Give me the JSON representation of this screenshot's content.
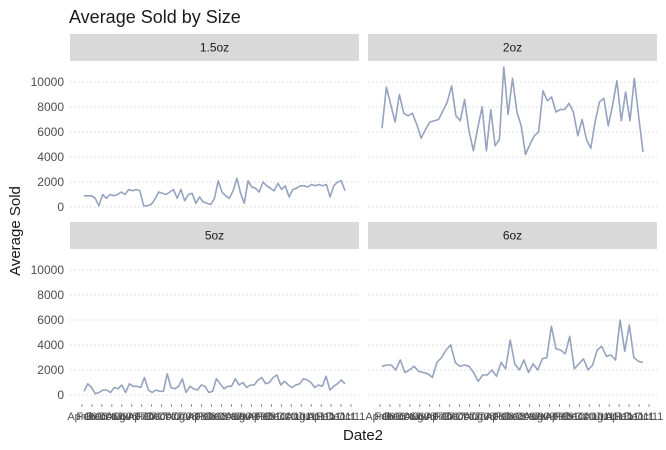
{
  "chart_data": {
    "type": "line",
    "title": "Average Sold by Size",
    "xlabel": "Date2",
    "ylabel": "Average Sold",
    "ylim": [
      0,
      11500
    ],
    "yticks": [
      0,
      2000,
      4000,
      6000,
      8000,
      10000
    ],
    "x_tick_labels": [
      "Apr06",
      "Feb06",
      "Dec06",
      "Oct06",
      "Aug06",
      "Jun07",
      "Apr07",
      "Feb07",
      "Dec07",
      "Oct07",
      "Aug08",
      "Jun08",
      "Apr08",
      "Feb08",
      "Dec09",
      "Oct09",
      "Aug09",
      "Jun09",
      "Apr09",
      "Feb10",
      "Dec10",
      "Oct10",
      "Aug11",
      "Jun11",
      "Apr11",
      "Feb11",
      "Dec11",
      "Oct11"
    ],
    "grid": true,
    "layout": "2x2 facets",
    "series_color": "#95a3bf",
    "series": [
      {
        "name": "1.5oz",
        "values": [
          900,
          900,
          900,
          700,
          100,
          1000,
          700,
          1000,
          900,
          1000,
          1200,
          1000,
          1400,
          1300,
          1400,
          1300,
          100,
          100,
          200,
          600,
          1200,
          1100,
          1000,
          1200,
          1400,
          700,
          1400,
          500,
          1000,
          1100,
          300,
          800,
          400,
          300,
          200,
          700,
          2100,
          1200,
          900,
          700,
          1300,
          2300,
          1100,
          300,
          2100,
          1600,
          1500,
          1200,
          2000,
          1700,
          1500,
          1300,
          1900,
          1400,
          1700,
          800,
          1400,
          1500,
          1700,
          1700,
          1600,
          1800,
          1700,
          1800,
          1700,
          1800,
          800,
          1700,
          2000,
          2100,
          1300
        ]
      },
      {
        "name": "2oz",
        "values": [
          6300,
          9600,
          8200,
          6800,
          9000,
          7500,
          7300,
          7500,
          6600,
          5500,
          6200,
          6800,
          6900,
          7000,
          7700,
          8400,
          9700,
          7300,
          6900,
          8600,
          6100,
          4500,
          6300,
          8000,
          4500,
          7800,
          4900,
          5400,
          11200,
          7400,
          10300,
          7600,
          6500,
          4200,
          5000,
          5700,
          6000,
          9300,
          8500,
          8800,
          7600,
          7800,
          7800,
          8300,
          7600,
          5700,
          7000,
          5400,
          4700,
          6800,
          8400,
          8700,
          6500,
          8100,
          10100,
          6900,
          9200,
          6900,
          10300,
          7300,
          4400
        ]
      },
      {
        "name": "5oz",
        "values": [
          300,
          900,
          600,
          100,
          200,
          400,
          400,
          200,
          600,
          500,
          800,
          200,
          900,
          700,
          700,
          600,
          1400,
          400,
          200,
          400,
          300,
          300,
          1700,
          600,
          500,
          700,
          1300,
          200,
          700,
          500,
          400,
          800,
          700,
          200,
          300,
          1300,
          900,
          500,
          700,
          700,
          1300,
          800,
          1000,
          600,
          800,
          800,
          1200,
          1400,
          900,
          1000,
          1400,
          1600,
          800,
          1100,
          800,
          600,
          800,
          900,
          1300,
          1200,
          1000,
          600,
          800,
          700,
          1500,
          400,
          700,
          900,
          1200,
          900
        ]
      },
      {
        "name": "6oz",
        "values": [
          2300,
          2400,
          2400,
          2000,
          2800,
          1800,
          2000,
          2300,
          1900,
          1800,
          1700,
          1400,
          2600,
          3000,
          3600,
          4000,
          2600,
          2300,
          2400,
          2300,
          1800,
          1100,
          1600,
          1600,
          2000,
          1500,
          2600,
          2100,
          4400,
          2500,
          2000,
          2800,
          1800,
          2500,
          2000,
          2900,
          3000,
          5500,
          3700,
          3600,
          3300,
          4700,
          2100,
          2500,
          2900,
          2000,
          2400,
          3600,
          3900,
          3100,
          3200,
          2800,
          6000,
          3500,
          5600,
          3000,
          2700,
          2600
        ]
      }
    ]
  }
}
